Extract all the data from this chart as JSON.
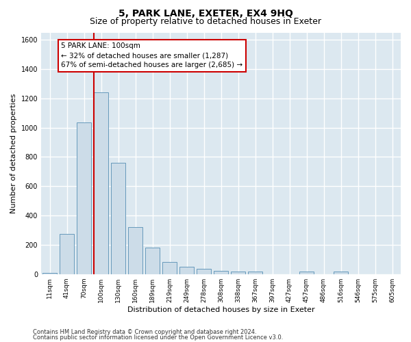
{
  "title": "5, PARK LANE, EXETER, EX4 9HQ",
  "subtitle": "Size of property relative to detached houses in Exeter",
  "xlabel": "Distribution of detached houses by size in Exeter",
  "ylabel": "Number of detached properties",
  "categories": [
    "11sqm",
    "41sqm",
    "70sqm",
    "100sqm",
    "130sqm",
    "160sqm",
    "189sqm",
    "219sqm",
    "249sqm",
    "278sqm",
    "308sqm",
    "338sqm",
    "367sqm",
    "397sqm",
    "427sqm",
    "457sqm",
    "486sqm",
    "516sqm",
    "546sqm",
    "575sqm",
    "605sqm"
  ],
  "values": [
    10,
    275,
    1035,
    1240,
    760,
    320,
    180,
    85,
    50,
    35,
    22,
    18,
    18,
    0,
    0,
    18,
    0,
    18,
    0,
    0,
    0
  ],
  "bar_color": "#ccdce8",
  "bar_edge_color": "#6699bb",
  "vline_color": "#cc0000",
  "vline_index": 3,
  "ylim": [
    0,
    1650
  ],
  "yticks": [
    0,
    200,
    400,
    600,
    800,
    1000,
    1200,
    1400,
    1600
  ],
  "annotation_line1": "5 PARK LANE: 100sqm",
  "annotation_line2": "← 32% of detached houses are smaller (1,287)",
  "annotation_line3": "67% of semi-detached houses are larger (2,685) →",
  "annotation_box_color": "#ffffff",
  "annotation_box_edge_color": "#cc0000",
  "footer_line1": "Contains HM Land Registry data © Crown copyright and database right 2024.",
  "footer_line2": "Contains public sector information licensed under the Open Government Licence v3.0.",
  "bg_color": "#ffffff",
  "plot_bg_color": "#dce8f0",
  "grid_color": "#ffffff",
  "title_fontsize": 10,
  "subtitle_fontsize": 9,
  "label_fontsize": 8,
  "tick_fontsize": 6.5,
  "annotation_fontsize": 7.5,
  "footer_fontsize": 6
}
